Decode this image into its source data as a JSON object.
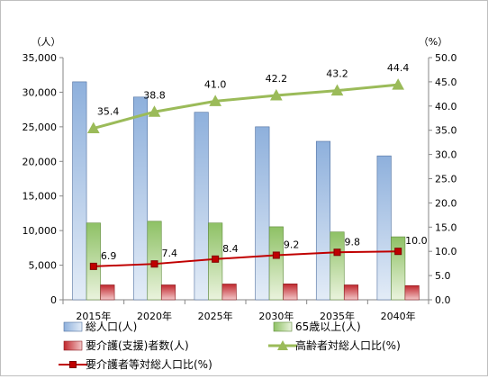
{
  "chart_data": {
    "type": "bar",
    "categories": [
      "2015年",
      "2020年",
      "2025年",
      "2030年",
      "2035年",
      "2040年"
    ],
    "y_left": {
      "unit_label": "（人）",
      "range": [
        0,
        35000
      ],
      "ticks": [
        "0",
        "5,000",
        "10,000",
        "15,000",
        "20,000",
        "25,000",
        "30,000",
        "35,000"
      ]
    },
    "y_right": {
      "unit_label": "（%）",
      "range": [
        0,
        50
      ],
      "ticks": [
        "0.0",
        "5.0",
        "10.0",
        "15.0",
        "20.0",
        "25.0",
        "30.0",
        "35.0",
        "40.0",
        "45.0",
        "50.0"
      ]
    },
    "series": [
      {
        "name": "総人口(人)",
        "kind": "bar",
        "axis": "left",
        "color": "#4f81bd",
        "values": [
          31500,
          29300,
          27100,
          25000,
          22900,
          20800
        ]
      },
      {
        "name": "65歳以上(人)",
        "kind": "bar",
        "axis": "left",
        "color": "#77b350",
        "values": [
          11100,
          11350,
          11100,
          10550,
          9800,
          9100
        ]
      },
      {
        "name": "要介護(支援)者数(人)",
        "kind": "bar",
        "axis": "left",
        "color": "#c0272d",
        "values": [
          2150,
          2150,
          2280,
          2300,
          2150,
          2050
        ]
      },
      {
        "name": "高齢者対総人口比(%)",
        "kind": "line",
        "axis": "right",
        "color": "#9bbb59",
        "marker": "triangle",
        "values": [
          35.4,
          38.8,
          41.0,
          42.2,
          43.2,
          44.4
        ],
        "labels": [
          "35.4",
          "38.8",
          "41.0",
          "42.2",
          "43.2",
          "44.4"
        ]
      },
      {
        "name": "要介護者等対総人口比(%)",
        "kind": "line",
        "axis": "right",
        "color": "#c00000",
        "marker": "square",
        "values": [
          6.9,
          7.4,
          8.4,
          9.2,
          9.8,
          10.0
        ],
        "labels": [
          "6.9",
          "7.4",
          "8.4",
          "9.2",
          "9.8",
          "10.0"
        ]
      }
    ],
    "grid": false,
    "legend_position": "bottom"
  }
}
